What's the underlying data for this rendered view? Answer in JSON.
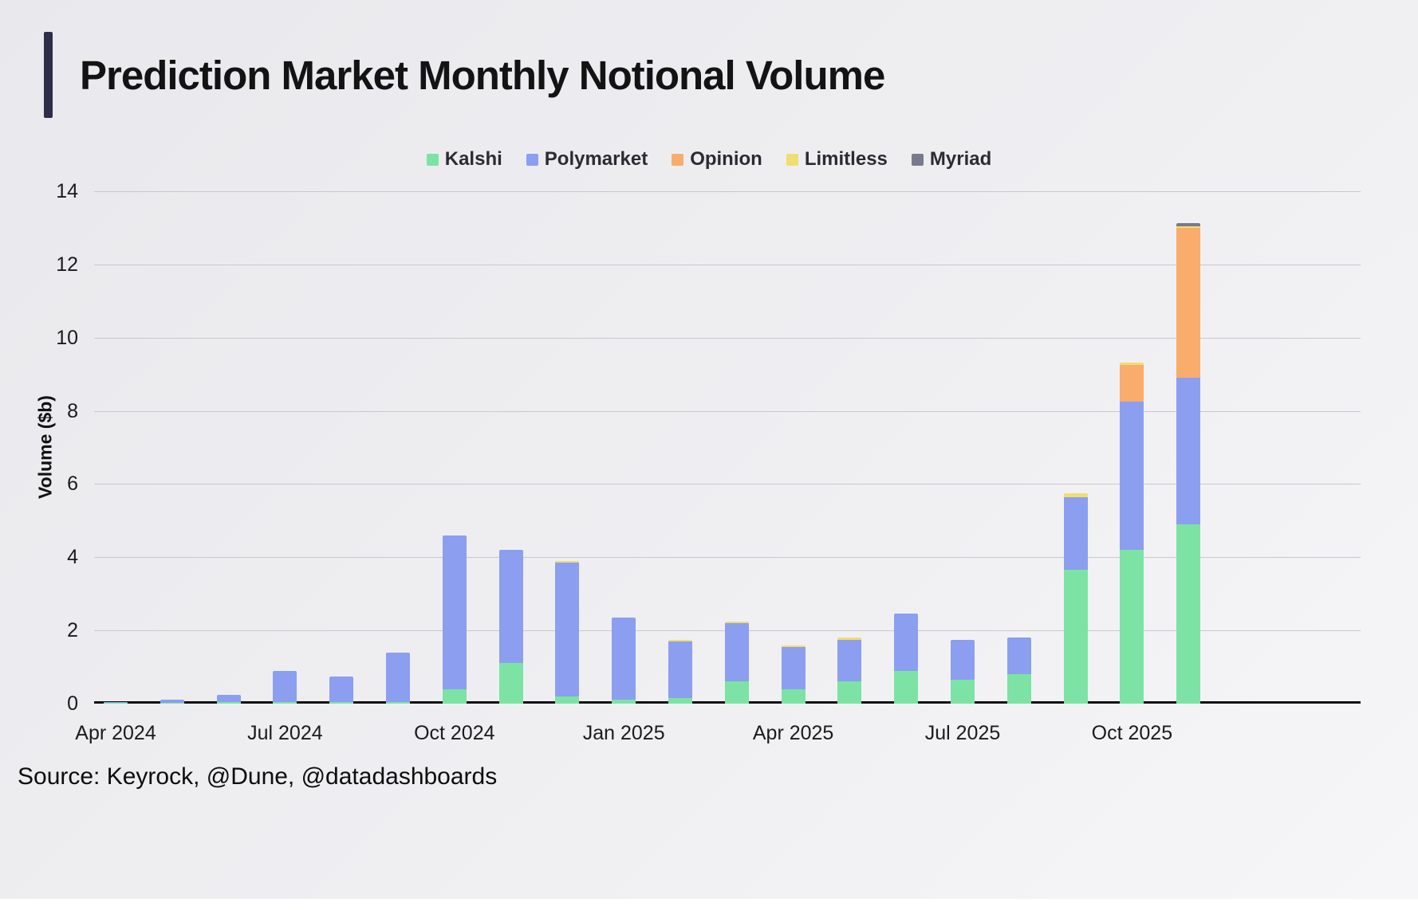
{
  "source": {
    "text": "Source: Keyrock, @Dune, @datadashboards"
  },
  "chart_data": {
    "type": "bar",
    "stacked": true,
    "title": "Prediction Market Monthly Notional Volume",
    "xlabel": "",
    "ylabel": "Volume ($b)",
    "ylim": [
      0,
      14
    ],
    "yticks": [
      0,
      2,
      4,
      6,
      8,
      10,
      12,
      14
    ],
    "grid": true,
    "legend_position": "top",
    "categories": [
      "Apr 2024",
      "May 2024",
      "Jun 2024",
      "Jul 2024",
      "Aug 2024",
      "Sep 2024",
      "Oct 2024",
      "Nov 2024",
      "Dec 2024",
      "Jan 2025",
      "Feb 2025",
      "Mar 2025",
      "Apr 2025",
      "May 2025",
      "Jun 2025",
      "Jul 2025",
      "Aug 2025",
      "Sep 2025",
      "Oct 2025",
      "Nov 2025"
    ],
    "x_ticks": [
      {
        "index": 0,
        "label": "Apr 2024"
      },
      {
        "index": 3,
        "label": "Jul 2024"
      },
      {
        "index": 6,
        "label": "Oct 2024"
      },
      {
        "index": 9,
        "label": "Jan 2025"
      },
      {
        "index": 12,
        "label": "Apr 2025"
      },
      {
        "index": 15,
        "label": "Jul 2025"
      },
      {
        "index": 18,
        "label": "Oct 2025"
      }
    ],
    "series": [
      {
        "name": "Kalshi",
        "color": "#7ce3a4",
        "values": [
          0.02,
          0.03,
          0.05,
          0.05,
          0.05,
          0.05,
          0.4,
          1.1,
          0.2,
          0.1,
          0.15,
          0.6,
          0.4,
          0.6,
          0.9,
          0.65,
          0.8,
          3.65,
          4.2,
          4.9
        ]
      },
      {
        "name": "Polymarket",
        "color": "#8c9ef0",
        "values": [
          0.03,
          0.08,
          0.18,
          0.85,
          0.7,
          1.35,
          4.2,
          3.1,
          3.65,
          2.25,
          1.55,
          1.6,
          1.15,
          1.15,
          1.55,
          1.1,
          1.0,
          2.0,
          4.05,
          4.0
        ]
      },
      {
        "name": "Opinion",
        "color": "#f9ac6b",
        "values": [
          0,
          0,
          0,
          0,
          0,
          0,
          0,
          0,
          0,
          0,
          0,
          0,
          0,
          0,
          0,
          0,
          0,
          0,
          1.0,
          4.1
        ]
      },
      {
        "name": "Limitless",
        "color": "#efde72",
        "values": [
          0,
          0,
          0,
          0,
          0,
          0,
          0,
          0,
          0.05,
          0,
          0.05,
          0.05,
          0.05,
          0.05,
          0,
          0,
          0,
          0.1,
          0.08,
          0.05
        ]
      },
      {
        "name": "Myriad",
        "color": "#787a8c",
        "values": [
          0,
          0,
          0,
          0,
          0,
          0,
          0,
          0,
          0,
          0,
          0,
          0,
          0,
          0,
          0,
          0,
          0,
          0,
          0,
          0.08
        ]
      }
    ]
  }
}
